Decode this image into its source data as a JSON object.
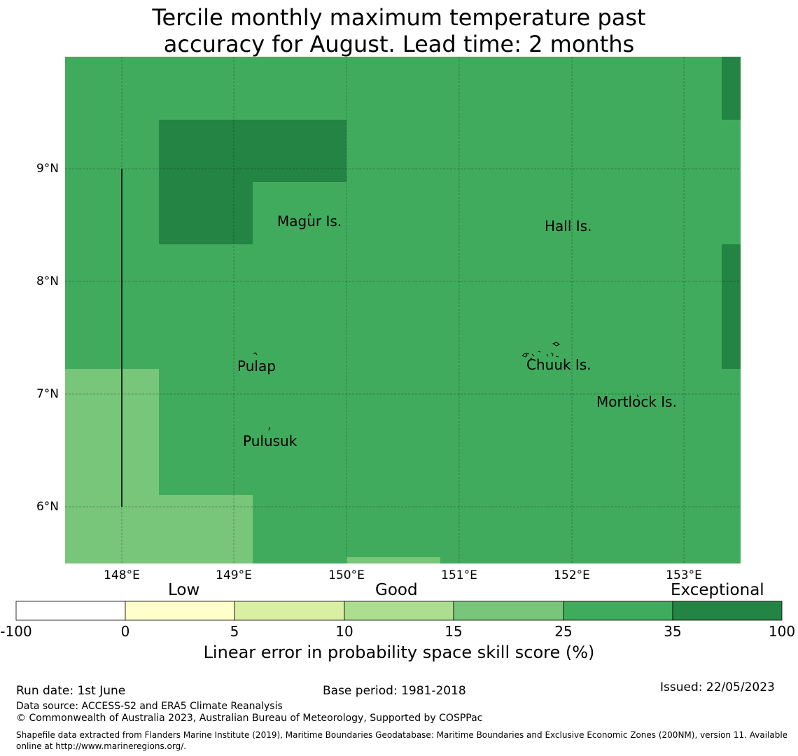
{
  "title_line1": "Tercile monthly maximum temperature past",
  "title_line2": "accuracy for August. Lead time: 2 months",
  "map": {
    "lat_ticks": [
      "9°N",
      "8°N",
      "7°N",
      "6°N"
    ],
    "lon_ticks": [
      "148°E",
      "149°E",
      "150°E",
      "151°E",
      "152°E",
      "153°E"
    ],
    "places": [
      "Magur Is.",
      "Hall Is.",
      "Pulap",
      "Chuuk Is.",
      "Mortlock Is.",
      "Pulusuk"
    ],
    "colors": {
      "background_class": "#41ab5d",
      "exceptional": "#238443",
      "good_15_25": "#78c679"
    }
  },
  "colorbar": {
    "categories": [
      "Low",
      "Good",
      "Exceptional"
    ],
    "tick_labels": [
      "-100",
      "0",
      "5",
      "10",
      "15",
      "25",
      "35",
      "100"
    ],
    "colors": [
      "#ffffff",
      "#ffffcc",
      "#d9f0a3",
      "#addd8e",
      "#78c679",
      "#41ab5d",
      "#238443"
    ],
    "label": "Linear error in probability space skill score (%)"
  },
  "footer": {
    "run_date": "Run date: 1st June",
    "base_period": "Base period: 1981-2018",
    "issued": "Issued: 22/05/2023",
    "data_source": "Data source: ACCESS-S2 and ERA5 Climate Reanalysis",
    "copyright": "© Commonwealth of Australia 2023, Australian Bureau of Meteorology, Supported by COSPPac",
    "shapefile": "Shapefile data extracted from Flanders Marine Institute (2019), Maritime Boundaries Geodatabase: Maritime Boundaries and Exclusive Economic Zones (200NM), version 11. Available online at http://www.marineregions.org/."
  }
}
